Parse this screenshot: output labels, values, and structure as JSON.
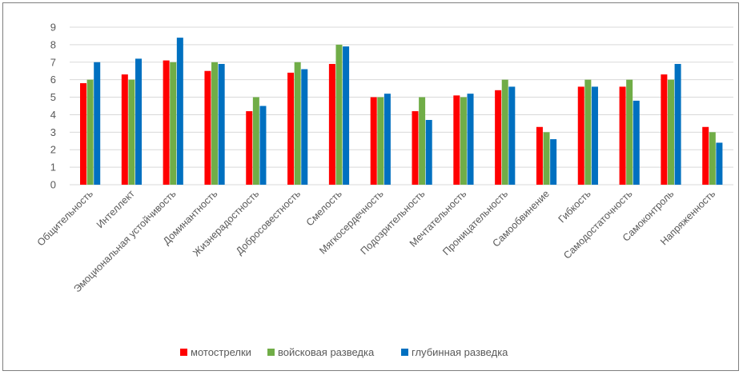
{
  "chart_data": {
    "type": "bar",
    "title": "",
    "xlabel": "",
    "ylabel": "",
    "ylim": [
      0,
      9
    ],
    "yticks": [
      "0",
      "1",
      "2",
      "3",
      "4",
      "5",
      "6",
      "7",
      "8",
      "9"
    ],
    "grid": true,
    "legend_position": "bottom",
    "categories": [
      "Общительность",
      "Интеллект",
      "Эмоциональная устойчивость",
      "Доминантность",
      "Жизнерадостность",
      "Добросовестность",
      "Смелость",
      "Мягкосердечность",
      "Подозрительность",
      "Мечтательность",
      "Проницательность",
      "Самообвинение",
      "Гибкость",
      "Самодостаточность",
      "Самоконтроль",
      "Напряженность"
    ],
    "series": [
      {
        "name": "мотострелки",
        "color": "#ff0000",
        "values": [
          5.8,
          6.3,
          7.1,
          6.5,
          4.2,
          6.4,
          6.9,
          5.0,
          4.2,
          5.1,
          5.4,
          3.3,
          5.6,
          5.6,
          6.3,
          3.3
        ]
      },
      {
        "name": "войсковая разведка",
        "color": "#70ad47",
        "values": [
          6.0,
          6.0,
          7.0,
          7.0,
          5.0,
          7.0,
          8.0,
          5.0,
          5.0,
          5.0,
          6.0,
          3.0,
          6.0,
          6.0,
          6.0,
          3.0
        ]
      },
      {
        "name": "глубинная  разведка",
        "color": "#0070c0",
        "values": [
          7.0,
          7.2,
          8.4,
          6.9,
          4.5,
          6.6,
          7.9,
          5.2,
          3.7,
          5.2,
          5.6,
          2.6,
          5.6,
          4.8,
          6.9,
          2.4
        ]
      }
    ]
  }
}
